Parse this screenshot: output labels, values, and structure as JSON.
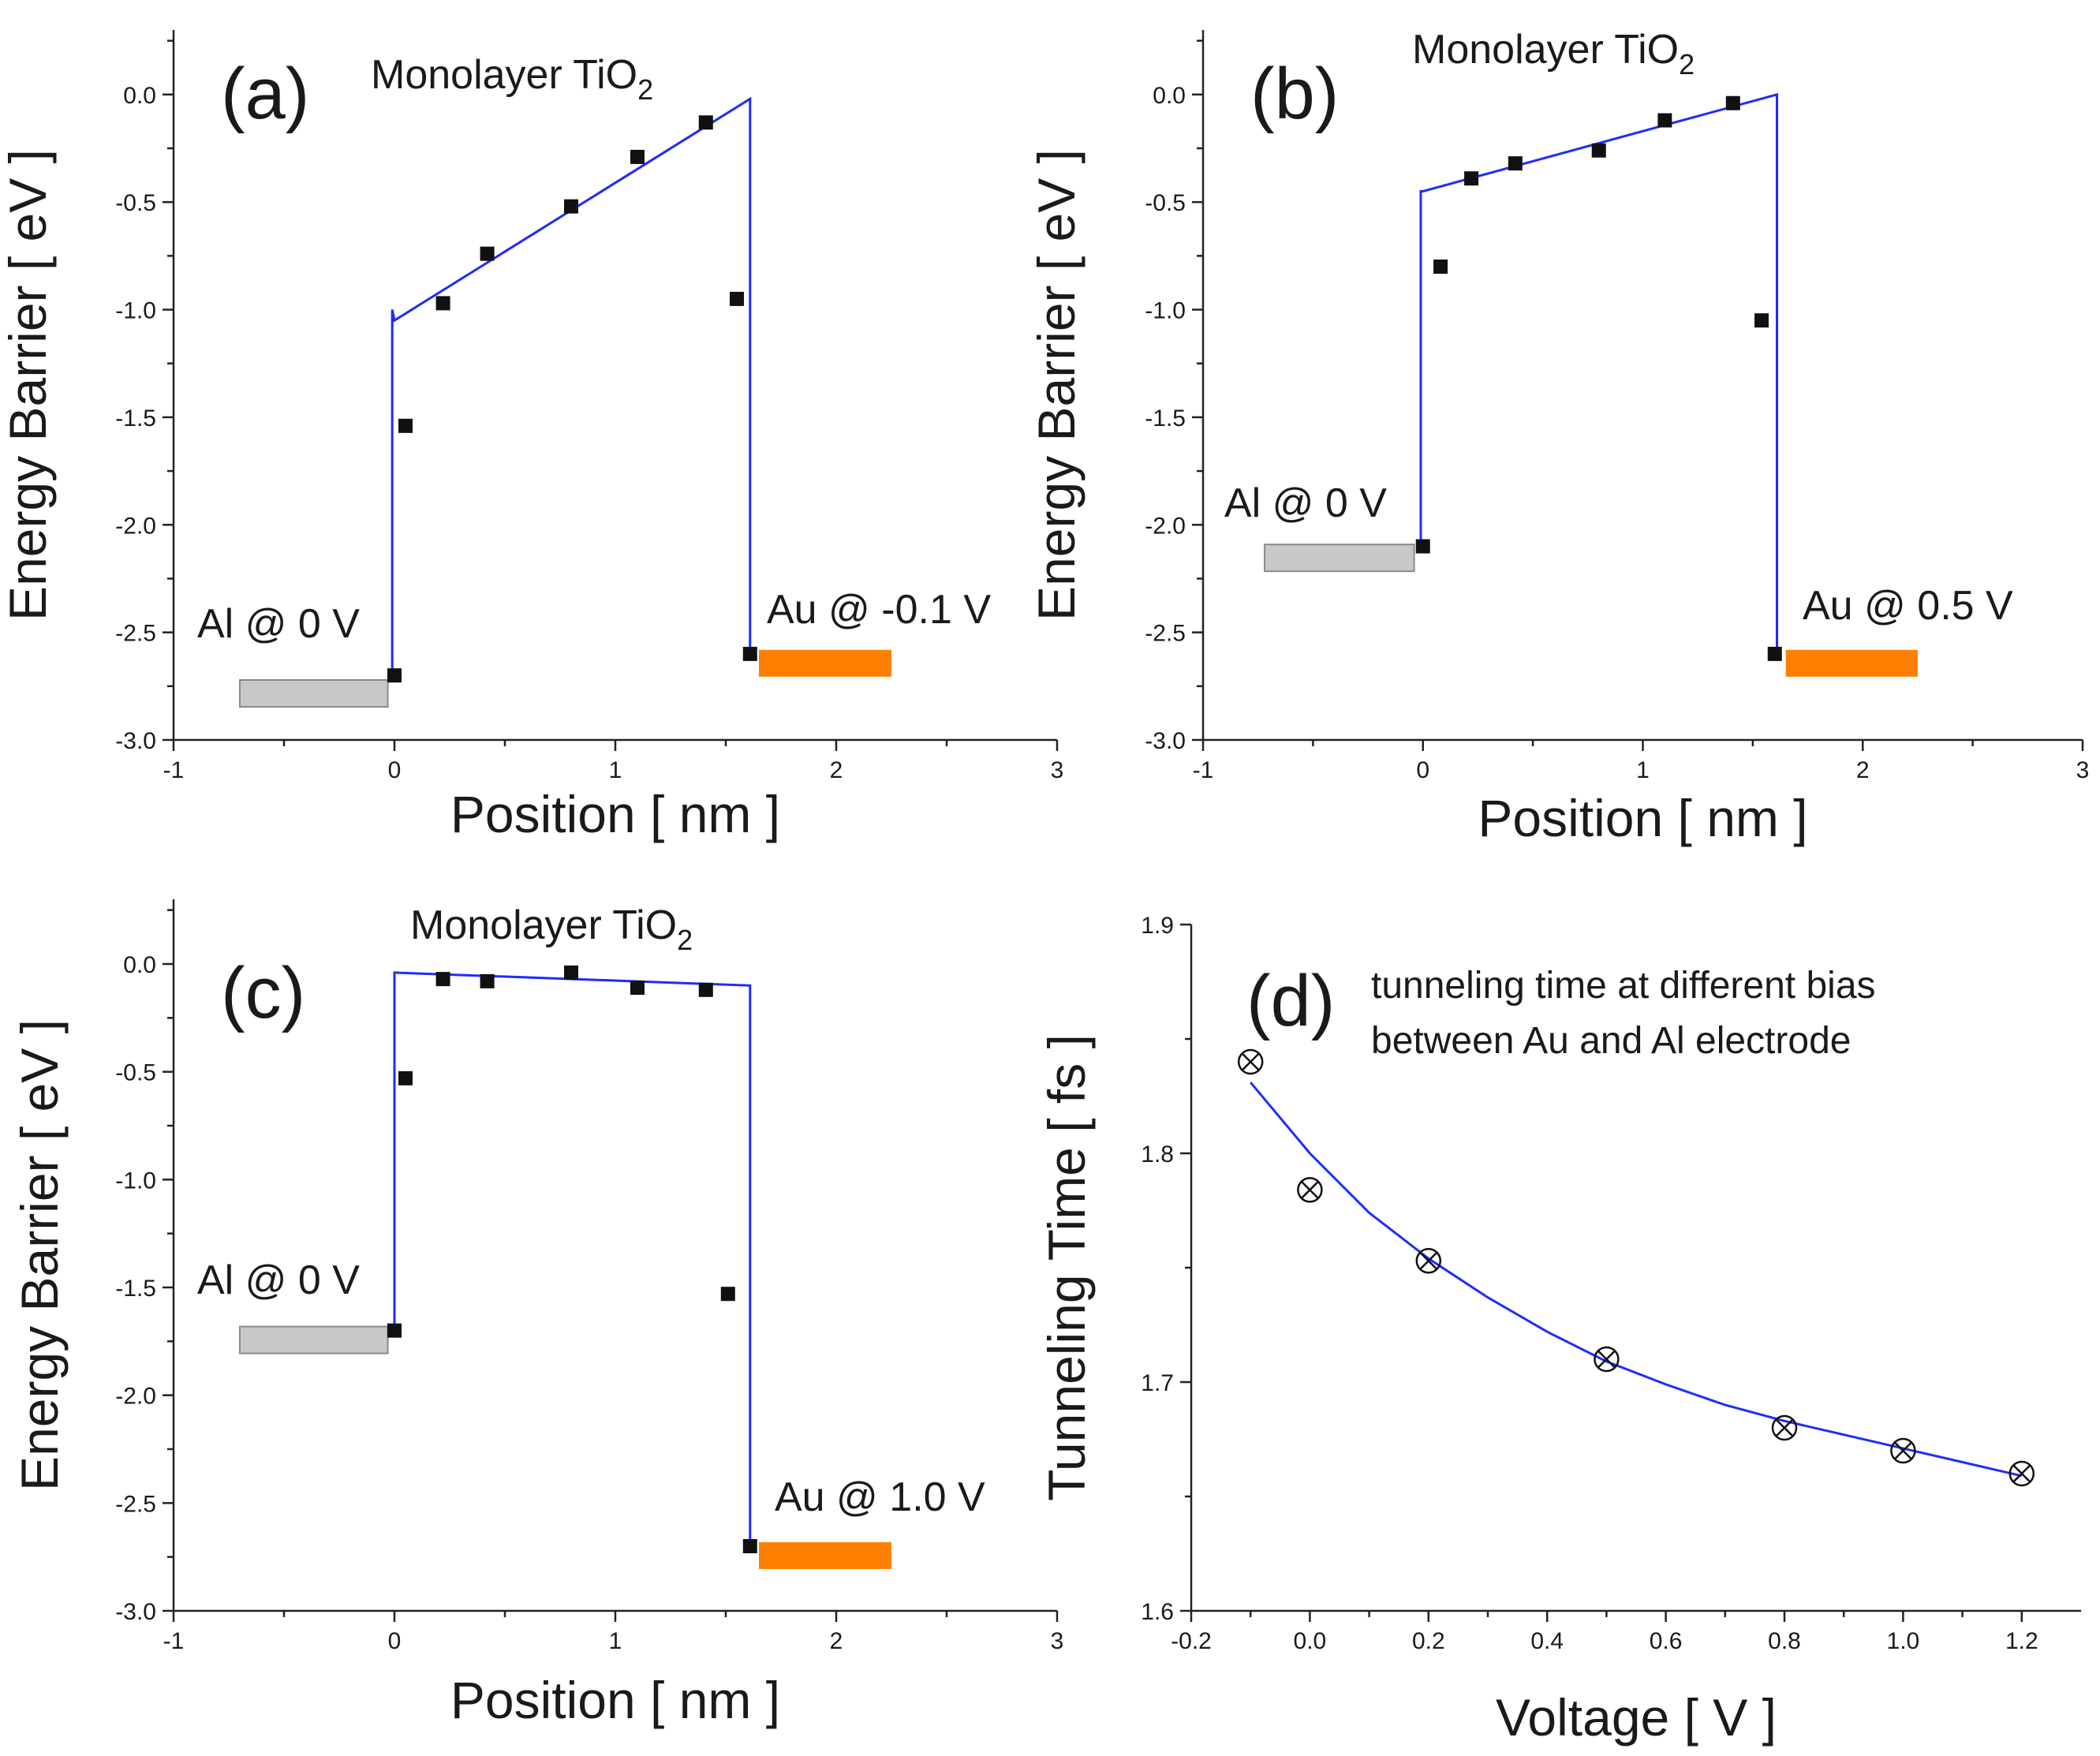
{
  "colors": {
    "fit": "#1f2bff",
    "marker": "#111111",
    "al_electrode": "#c8c8c8",
    "au_electrode": "#ff8000"
  },
  "chart_data": [
    {
      "id": "a",
      "type": "scatter",
      "panel_label": "(a)",
      "title_main": "Monolayer TiO",
      "title_sub": "2",
      "xlabel": "Position [ nm ]",
      "ylabel": "Energy Barrier [ eV ]",
      "xlim": [
        -1,
        3
      ],
      "ylim": [
        -3.0,
        0.3
      ],
      "xticks": [
        -1,
        0,
        1,
        2,
        3
      ],
      "xtick_labels": [
        "-1",
        "0",
        "1",
        "2",
        "3"
      ],
      "yticks": [
        0.0,
        -0.5,
        -1.0,
        -1.5,
        -2.0,
        -2.5,
        -3.0
      ],
      "ytick_labels": [
        "0.0",
        "-0.5",
        "-1.0",
        "-1.5",
        "-2.0",
        "-2.5",
        "-3.0"
      ],
      "points": {
        "x": [
          0.0,
          0.05,
          0.22,
          0.42,
          0.8,
          1.1,
          1.41,
          1.55,
          1.61
        ],
        "y": [
          -2.7,
          -1.54,
          -0.97,
          -0.74,
          -0.52,
          -0.29,
          -0.13,
          -0.95,
          -2.6
        ]
      },
      "fit": {
        "x": [
          -0.01,
          -0.01,
          0.0,
          1.61,
          1.61
        ],
        "y": [
          -2.72,
          -1.0,
          -1.05,
          -0.02,
          -2.6
        ]
      },
      "electrodes": [
        {
          "label": "Al @ 0 V",
          "x": [
            -0.7,
            -0.03
          ],
          "y": -2.78,
          "color": "#c8c8c8"
        },
        {
          "label": "Au @ -0.1 V",
          "x": [
            1.65,
            2.25
          ],
          "y": -2.64,
          "color": "#ff8000"
        }
      ]
    },
    {
      "id": "b",
      "type": "scatter",
      "panel_label": "(b)",
      "title_main": "Monolayer TiO",
      "title_sub": "2",
      "xlabel": "Position [ nm ]",
      "ylabel": "Energy Barrier [ eV ]",
      "xlim": [
        -1,
        3
      ],
      "ylim": [
        -3.0,
        0.3
      ],
      "xticks": [
        -1,
        0,
        1,
        2,
        3
      ],
      "xtick_labels": [
        "-1",
        "0",
        "1",
        "2",
        "3"
      ],
      "yticks": [
        0.0,
        -0.5,
        -1.0,
        -1.5,
        -2.0,
        -2.5,
        -3.0
      ],
      "ytick_labels": [
        "0.0",
        "-0.5",
        "-1.0",
        "-1.5",
        "-2.0",
        "-2.5",
        "-3.0"
      ],
      "points": {
        "x": [
          0.0,
          0.08,
          0.22,
          0.42,
          0.8,
          1.1,
          1.41,
          1.54,
          1.6
        ],
        "y": [
          -2.1,
          -0.8,
          -0.39,
          -0.32,
          -0.26,
          -0.12,
          -0.04,
          -1.05,
          -2.6
        ]
      },
      "fit": {
        "x": [
          -0.01,
          -0.01,
          0.0,
          1.61,
          1.61
        ],
        "y": [
          -2.1,
          -0.45,
          -0.45,
          0.0,
          -2.6
        ]
      },
      "electrodes": [
        {
          "label": "Al @ 0 V",
          "x": [
            -0.72,
            -0.04
          ],
          "y": -2.15,
          "color": "#c8c8c8"
        },
        {
          "label": "Au @ 0.5 V",
          "x": [
            1.65,
            2.25
          ],
          "y": -2.64,
          "color": "#ff8000"
        }
      ]
    },
    {
      "id": "c",
      "type": "scatter",
      "panel_label": "(c)",
      "title_main": "Monolayer TiO",
      "title_sub": "2",
      "xlabel": "Position [ nm ]",
      "ylabel": "Energy Barrier [ eV ]",
      "xlim": [
        -1,
        3
      ],
      "ylim": [
        -3.0,
        0.3
      ],
      "xticks": [
        -1,
        0,
        1,
        2,
        3
      ],
      "xtick_labels": [
        "-1",
        "0",
        "1",
        "2",
        "3"
      ],
      "yticks": [
        0.0,
        -0.5,
        -1.0,
        -1.5,
        -2.0,
        -2.5,
        -3.0
      ],
      "ytick_labels": [
        "0.0",
        "-0.5",
        "-1.0",
        "-1.5",
        "-2.0",
        "-2.5",
        "-3.0"
      ],
      "points": {
        "x": [
          0.0,
          0.05,
          0.22,
          0.42,
          0.8,
          1.1,
          1.41,
          1.51,
          1.61
        ],
        "y": [
          -1.7,
          -0.53,
          -0.07,
          -0.08,
          -0.04,
          -0.11,
          -0.12,
          -1.53,
          -2.7
        ]
      },
      "fit": {
        "x": [
          0.0,
          0.0,
          0.0,
          1.61,
          1.61
        ],
        "y": [
          -1.72,
          -0.04,
          -0.04,
          -0.1,
          -2.7
        ]
      },
      "electrodes": [
        {
          "label": "Al @ 0 V",
          "x": [
            -0.7,
            -0.03
          ],
          "y": -1.74,
          "color": "#c8c8c8"
        },
        {
          "label": "Au @ 1.0 V",
          "x": [
            1.65,
            2.25
          ],
          "y": -2.74,
          "color": "#ff8000"
        }
      ]
    },
    {
      "id": "d",
      "type": "scatter",
      "panel_label": "(d)",
      "annotation_lines": [
        "tunneling time at different bias",
        "between Au and Al electrode"
      ],
      "xlabel": "Voltage [ V ]",
      "ylabel": "Tunneling Time [ fs ]",
      "xlim": [
        -0.2,
        1.3
      ],
      "ylim": [
        1.6,
        1.9
      ],
      "xticks": [
        -0.2,
        0.0,
        0.2,
        0.4,
        0.6,
        0.8,
        1.0,
        1.2
      ],
      "xtick_labels": [
        "-0.2",
        "0.0",
        "0.2",
        "0.4",
        "0.6",
        "0.8",
        "1.0",
        "1.2"
      ],
      "yticks": [
        1.6,
        1.7,
        1.8,
        1.9
      ],
      "ytick_labels": [
        "1.6",
        "1.7",
        "1.8",
        "1.9"
      ],
      "points": {
        "x": [
          -0.1,
          0.0,
          0.2,
          0.5,
          0.8,
          1.0,
          1.2
        ],
        "y": [
          1.84,
          1.784,
          1.753,
          1.71,
          1.68,
          1.67,
          1.66
        ]
      },
      "fit": {
        "x": [
          -0.1,
          0.0,
          0.1,
          0.2,
          0.3,
          0.4,
          0.5,
          0.6,
          0.7,
          0.8,
          0.9,
          1.0,
          1.1,
          1.2
        ],
        "y": [
          1.831,
          1.8,
          1.774,
          1.754,
          1.737,
          1.722,
          1.709,
          1.699,
          1.69,
          1.683,
          1.677,
          1.671,
          1.665,
          1.659
        ]
      }
    }
  ]
}
